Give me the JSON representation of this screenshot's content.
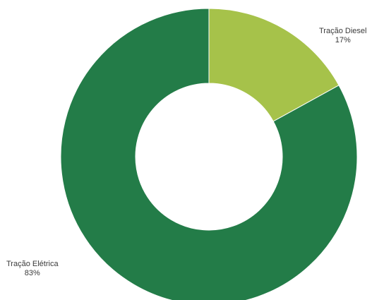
{
  "chart_data": {
    "type": "pie",
    "donut": true,
    "categories": [
      "Tração Diesel",
      "Tração Elétrica"
    ],
    "values": [
      17,
      83
    ],
    "labels": [
      "17%",
      "83%"
    ],
    "colors": [
      "#a6c24a",
      "#237c48"
    ],
    "title": "",
    "legend": "none"
  }
}
